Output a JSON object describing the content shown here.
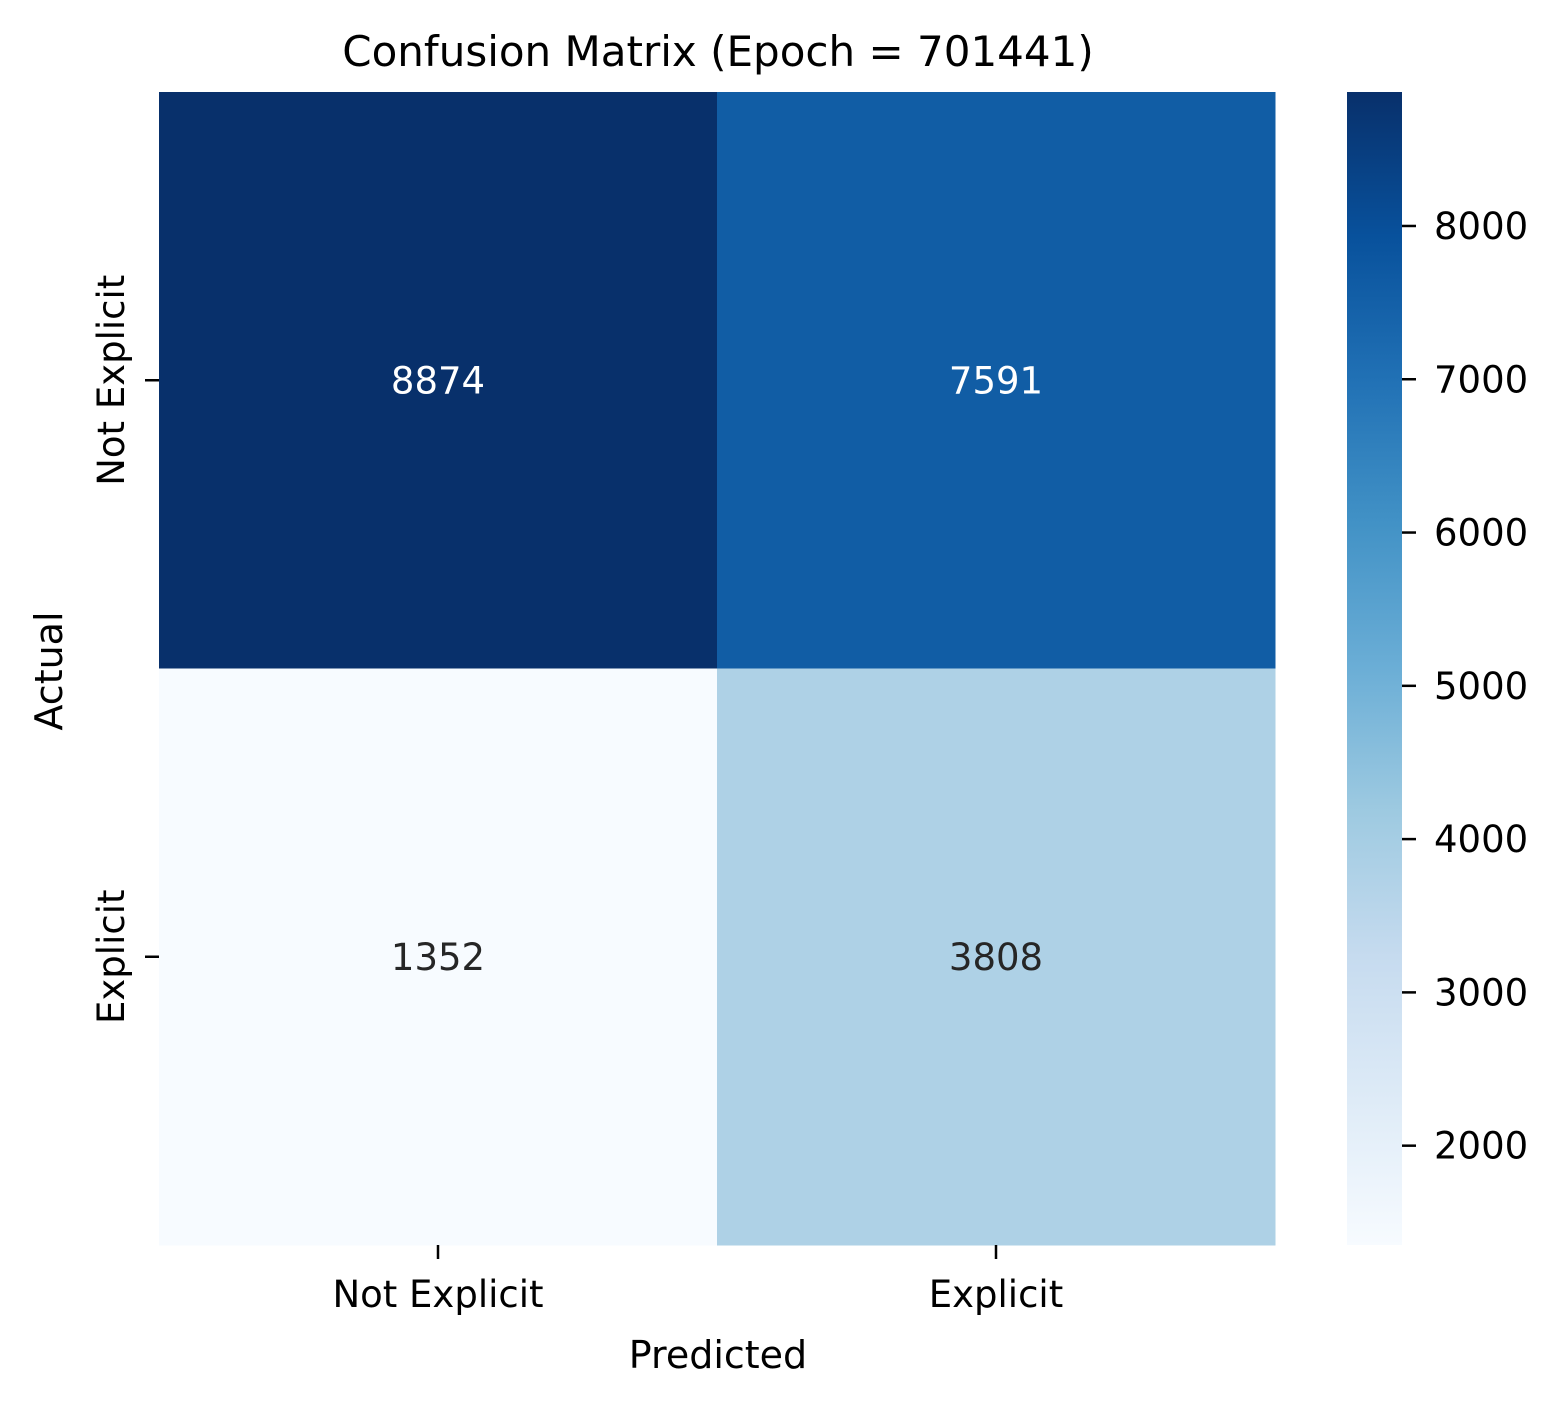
{
  "chart_data": {
    "type": "heatmap",
    "title": "Confusion Matrix (Epoch = 701441)",
    "xlabel": "Predicted",
    "ylabel": "Actual",
    "x_categories": [
      "Not Explicit",
      "Explicit"
    ],
    "y_categories": [
      "Not Explicit",
      "Explicit"
    ],
    "values": [
      [
        8874,
        7591
      ],
      [
        1352,
        3808
      ]
    ],
    "colormap": "Blues",
    "colorbar": {
      "vmin": 1352,
      "vmax": 8874,
      "ticks": [
        2000,
        3000,
        4000,
        5000,
        6000,
        7000,
        8000
      ],
      "tick_labels": [
        "2000",
        "3000",
        "4000",
        "5000",
        "6000",
        "7000",
        "8000"
      ]
    },
    "colors": {
      "scale": [
        "#f7fbff",
        "#deebf7",
        "#c6dbef",
        "#9ecae1",
        "#6baed6",
        "#4292c6",
        "#2171b5",
        "#08519c",
        "#08306b"
      ],
      "text_light": "#ffffff",
      "text_dark": "#262626"
    }
  }
}
